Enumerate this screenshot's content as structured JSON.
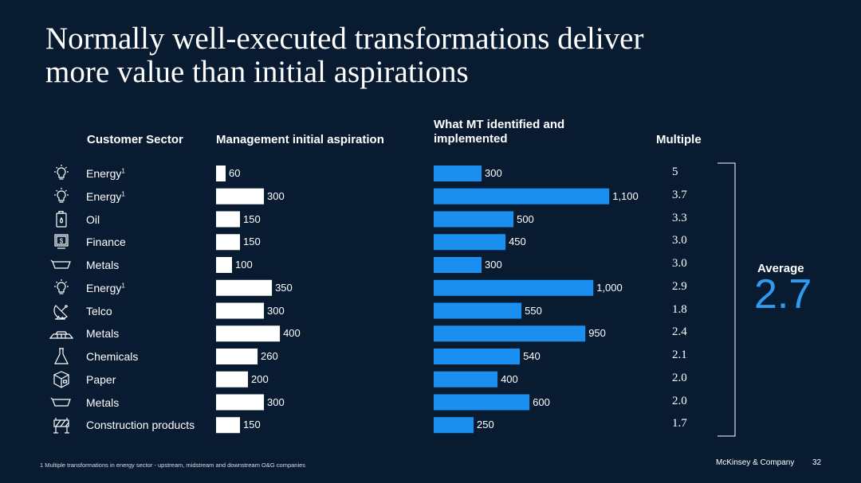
{
  "title": {
    "line1": "Normally well-executed transformations deliver",
    "line2": "more value than initial aspirations"
  },
  "headers": {
    "sector": "Customer Sector",
    "initial": "Management initial aspiration",
    "identified": "What MT identified and implemented",
    "multiple": "Multiple"
  },
  "chart_data": {
    "type": "bar",
    "title": "Normally well-executed transformations deliver more value than initial aspirations",
    "categories": [
      "Energy",
      "Energy",
      "Oil",
      "Finance",
      "Metals",
      "Energy",
      "Telco",
      "Metals",
      "Chemicals",
      "Paper",
      "Metals",
      "Construction products"
    ],
    "footnote_marks": [
      "1",
      "1",
      "",
      "",
      "",
      "1",
      "",
      "",
      "",
      "",
      "",
      ""
    ],
    "icons": [
      "lightbulb-icon",
      "lightbulb-icon",
      "oil-can-icon",
      "money-bill-icon",
      "metal-ingot-icon",
      "lightbulb-icon",
      "satellite-dish-icon",
      "metal-bars-icon",
      "flask-icon",
      "paper-box-icon",
      "metal-ingot-icon",
      "construction-barrier-icon"
    ],
    "series": [
      {
        "name": "Management initial aspiration",
        "color": "#ffffff",
        "values": [
          60,
          300,
          150,
          150,
          100,
          350,
          300,
          400,
          260,
          200,
          300,
          150
        ]
      },
      {
        "name": "What MT identified and implemented",
        "color": "#1a8fef",
        "values": [
          300,
          1100,
          500,
          450,
          300,
          1000,
          550,
          950,
          540,
          400,
          600,
          250
        ]
      }
    ],
    "value_labels": {
      "initial": [
        "60",
        "300",
        "150",
        "150",
        "100",
        "350",
        "300",
        "400",
        "260",
        "200",
        "300",
        "150"
      ],
      "identified": [
        "300",
        "1,100",
        "500",
        "450",
        "300",
        "1,000",
        "550",
        "950",
        "540",
        "400",
        "600",
        "250"
      ]
    },
    "multiples": [
      "5",
      "3.7",
      "3.3",
      "3.0",
      "3.0",
      "2.9",
      "1.8",
      "2.4",
      "2.1",
      "2.0",
      "2.0",
      "1.7"
    ],
    "average_label": "Average",
    "average_value": "2.7"
  },
  "footnote": "1 Multiple transformations in energy sector - upstream, midstream and downstream O&G companies",
  "brand": "McKinsey & Company",
  "page_number": "32"
}
